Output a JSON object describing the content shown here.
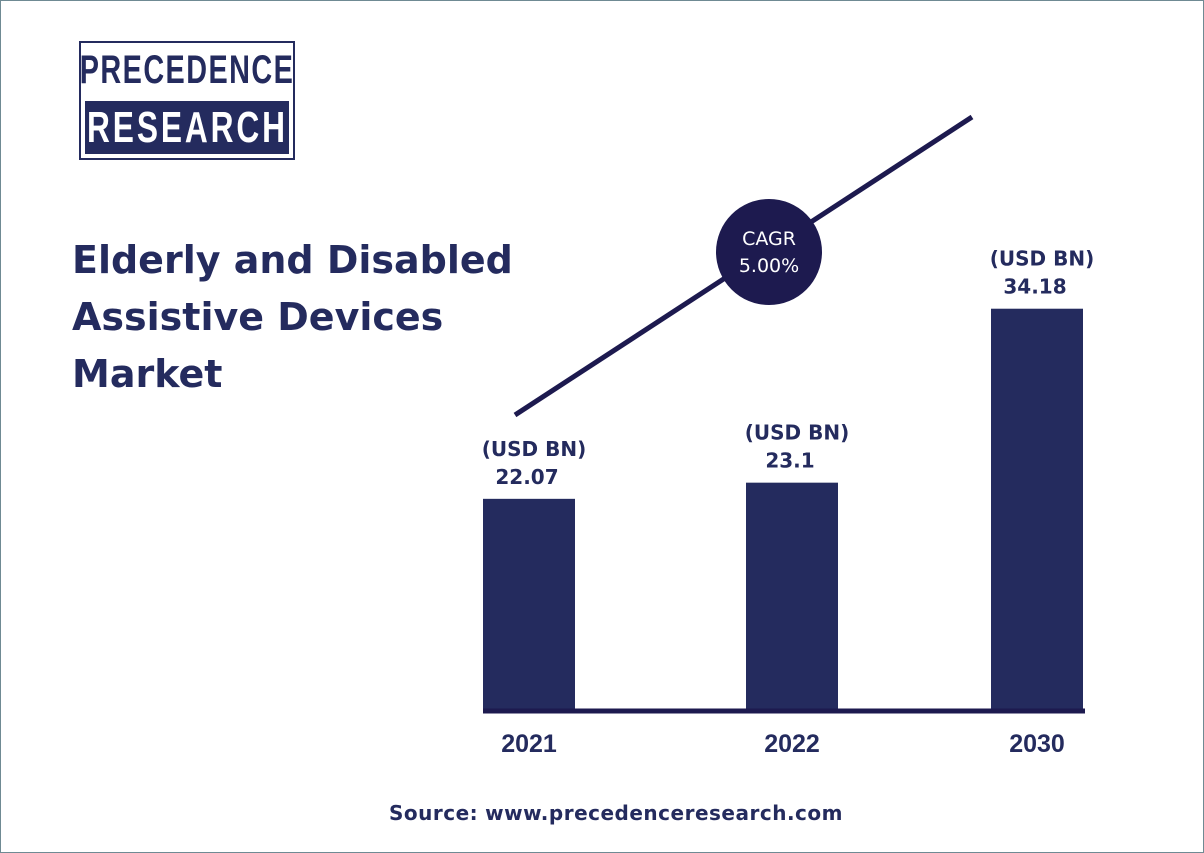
{
  "logo": {
    "line1": "PRECEDENCE",
    "line2": "RESEARCH"
  },
  "title_lines": [
    "Elderly and Disabled",
    "Assistive Devices",
    "Market"
  ],
  "cagr": {
    "label": "CAGR",
    "value": "5.00%"
  },
  "source": {
    "label": "Source:",
    "url": "www.precedenceresearch.com"
  },
  "colors": {
    "primary": "#242b5e",
    "trend_line": "#1d1a4f",
    "background": "#ffffff"
  },
  "chart_data": {
    "type": "bar",
    "categories": [
      "2021",
      "2022",
      "2030"
    ],
    "values": [
      22.07,
      23.1,
      34.18
    ],
    "unit_label": "(USD BN)",
    "value_labels": [
      "22.07",
      "23.1",
      "34.18"
    ],
    "trend_line": true,
    "legend": "none",
    "grid": false
  }
}
